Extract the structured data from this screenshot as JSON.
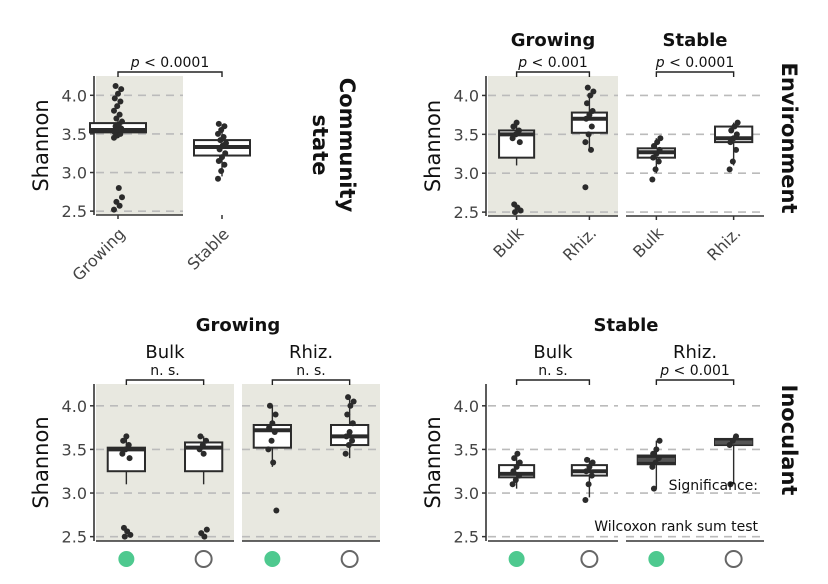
{
  "colors": {
    "panel_bg": "#e8e8e0",
    "grid": "#bbbbbb",
    "dark": "#2b2b2b",
    "green": "#4ec98f",
    "ring": "#666666"
  },
  "chart_data": [
    {
      "type": "box",
      "ylabel": "Shannon",
      "yticks": [
        "2.5",
        "3.0",
        "3.5",
        "4.0"
      ],
      "ylim": [
        2.45,
        4.25
      ],
      "strip_label": "Community state",
      "facets": [
        {
          "title": "",
          "shaded": true,
          "boxes": [
            {
              "category": "Growing",
              "q1": 3.52,
              "median": 3.55,
              "q3": 3.64,
              "min": 3.45,
              "max": 3.72,
              "color": "white",
              "points": [
                3.45,
                3.48,
                3.5,
                3.52,
                3.55,
                3.57,
                3.6,
                3.62,
                3.66,
                3.7,
                3.75,
                3.8,
                3.86,
                3.92,
                3.96,
                4.02,
                4.08,
                4.12,
                2.8,
                2.68,
                2.62,
                2.57,
                2.52
              ]
            },
            {
              "category": "Stable",
              "q1": 3.22,
              "median": 3.33,
              "q3": 3.42,
              "min": 2.95,
              "max": 3.6,
              "color": "white",
              "points": [
                2.92,
                3.02,
                3.1,
                3.15,
                3.2,
                3.25,
                3.3,
                3.35,
                3.38,
                3.42,
                3.46,
                3.5,
                3.55,
                3.6,
                3.63
              ]
            }
          ]
        }
      ],
      "sig": [
        {
          "text": "p < 0.0001",
          "facet": 0
        }
      ]
    },
    {
      "type": "box",
      "ylabel": "Shannon",
      "yticks": [
        "2.5",
        "3.0",
        "3.5",
        "4.0"
      ],
      "ylim": [
        2.45,
        4.25
      ],
      "strip_label": "Environment",
      "facets": [
        {
          "title": "Growing",
          "shaded": true,
          "boxes": [
            {
              "category": "Bulk",
              "q1": 3.2,
              "median": 3.5,
              "q3": 3.55,
              "min": 3.1,
              "max": 3.65,
              "color": "white",
              "points": [
                3.45,
                3.5,
                3.55,
                3.6,
                3.65,
                3.4,
                2.6,
                2.56,
                2.52,
                2.5
              ]
            },
            {
              "category": "Rhiz.",
              "q1": 3.52,
              "median": 3.7,
              "q3": 3.78,
              "min": 3.3,
              "max": 4.0,
              "color": "white",
              "points": [
                3.4,
                3.5,
                3.6,
                3.7,
                3.75,
                3.8,
                3.9,
                4.0,
                4.05,
                4.1,
                3.3,
                2.82
              ]
            }
          ]
        },
        {
          "title": "Stable",
          "shaded": false,
          "boxes": [
            {
              "category": "Bulk",
              "q1": 3.2,
              "median": 3.27,
              "q3": 3.32,
              "min": 3.0,
              "max": 3.45,
              "color": "white",
              "points": [
                2.92,
                3.05,
                3.15,
                3.2,
                3.25,
                3.3,
                3.35,
                3.4,
                3.45
              ]
            },
            {
              "category": "Rhiz.",
              "q1": 3.4,
              "median": 3.45,
              "q3": 3.6,
              "min": 3.1,
              "max": 3.65,
              "color": "white",
              "points": [
                3.05,
                3.15,
                3.3,
                3.4,
                3.45,
                3.5,
                3.55,
                3.6,
                3.65
              ]
            }
          ]
        }
      ],
      "sig": [
        {
          "text": "p < 0.001",
          "facet": 0
        },
        {
          "text": "p < 0.0001",
          "facet": 1
        }
      ]
    },
    {
      "type": "box",
      "ylabel": "Shannon",
      "yticks": [
        "2.5",
        "3.0",
        "3.5",
        "4.0"
      ],
      "ylim": [
        2.45,
        4.25
      ],
      "group_title": "Growing",
      "facets": [
        {
          "title": "Bulk",
          "shaded": true,
          "boxes": [
            {
              "category": "inoculated",
              "q1": 3.25,
              "median": 3.5,
              "q3": 3.52,
              "min": 3.1,
              "max": 3.65,
              "color": "white",
              "points": [
                3.45,
                3.5,
                3.55,
                3.6,
                3.65,
                3.4,
                2.6,
                2.56,
                2.52,
                2.5
              ]
            },
            {
              "category": "non-inoculated",
              "q1": 3.25,
              "median": 3.52,
              "q3": 3.58,
              "min": 3.1,
              "max": 3.65,
              "color": "white",
              "points": [
                3.5,
                3.55,
                3.6,
                3.65,
                3.45,
                2.58,
                2.54,
                2.5
              ]
            }
          ]
        },
        {
          "title": "Rhiz.",
          "shaded": true,
          "boxes": [
            {
              "category": "inoculated",
              "q1": 3.52,
              "median": 3.72,
              "q3": 3.78,
              "min": 3.3,
              "max": 4.0,
              "color": "white",
              "points": [
                3.5,
                3.6,
                3.7,
                3.75,
                3.8,
                3.9,
                4.0,
                3.35,
                2.8
              ]
            },
            {
              "category": "non-inoculated",
              "q1": 3.55,
              "median": 3.65,
              "q3": 3.78,
              "min": 3.4,
              "max": 4.1,
              "color": "white",
              "points": [
                3.45,
                3.55,
                3.6,
                3.65,
                3.7,
                3.8,
                3.9,
                4.0,
                4.05,
                4.1
              ]
            }
          ]
        }
      ],
      "sig": [
        {
          "text": "n. s.",
          "facet": 0
        },
        {
          "text": "n. s.",
          "facet": 1
        }
      ]
    },
    {
      "type": "box",
      "ylabel": "Shannon",
      "yticks": [
        "2.5",
        "3.0",
        "3.5",
        "4.0"
      ],
      "ylim": [
        2.45,
        4.25
      ],
      "group_title": "Stable",
      "strip_label": "Inoculant",
      "facets": [
        {
          "title": "Bulk",
          "shaded": false,
          "boxes": [
            {
              "category": "inoculated",
              "q1": 3.18,
              "median": 3.22,
              "q3": 3.32,
              "min": 3.05,
              "max": 3.45,
              "color": "white",
              "points": [
                3.1,
                3.15,
                3.2,
                3.25,
                3.3,
                3.35,
                3.4,
                3.45
              ]
            },
            {
              "category": "non-inoculated",
              "q1": 3.2,
              "median": 3.25,
              "q3": 3.32,
              "min": 2.95,
              "max": 3.4,
              "color": "white",
              "points": [
                2.92,
                3.1,
                3.2,
                3.25,
                3.3,
                3.35,
                3.38
              ]
            }
          ]
        },
        {
          "title": "Rhiz.",
          "shaded": false,
          "boxes": [
            {
              "category": "inoculated",
              "q1": 3.33,
              "median": 3.38,
              "q3": 3.43,
              "min": 3.05,
              "max": 3.6,
              "color": "dark",
              "points": [
                3.3,
                3.35,
                3.4,
                3.45,
                3.5,
                3.6,
                3.05
              ]
            },
            {
              "category": "non-inoculated",
              "q1": 3.55,
              "median": 3.58,
              "q3": 3.62,
              "min": 3.1,
              "max": 3.65,
              "color": "dark",
              "points": [
                3.55,
                3.6,
                3.65,
                3.1
              ]
            }
          ]
        }
      ],
      "sig": [
        {
          "text": "n. s.",
          "facet": 0
        },
        {
          "text": "p < 0.001",
          "facet": 1
        }
      ],
      "note_line1": "Significance:",
      "note_line2": "Wilcoxon rank sum test"
    }
  ]
}
